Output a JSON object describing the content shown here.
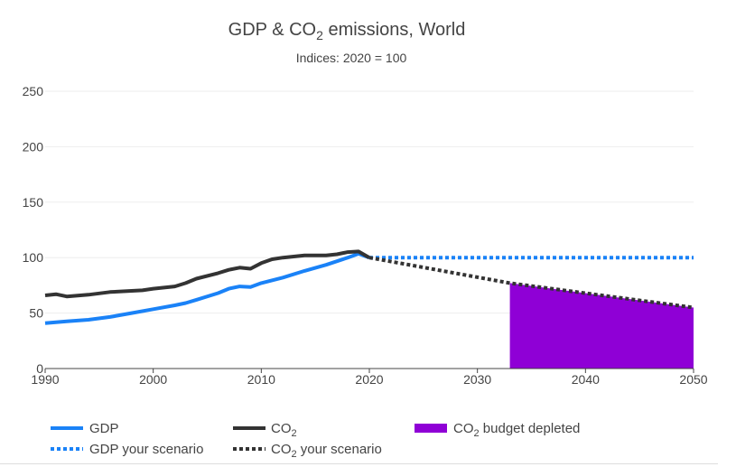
{
  "chart_data": {
    "type": "line",
    "title": "GDP & CO₂ emissions, World",
    "subtitle": "Indices: 2020 = 100",
    "xlabel": "",
    "ylabel": "",
    "xlim": [
      1990,
      2050
    ],
    "ylim": [
      0,
      250
    ],
    "x_ticks": [
      1990,
      2000,
      2010,
      2020,
      2030,
      2040,
      2050
    ],
    "y_ticks": [
      0,
      50,
      100,
      150,
      200,
      250
    ],
    "grid": true,
    "legend_position": "bottom",
    "series": [
      {
        "name": "GDP",
        "color": "#1a82f7",
        "style": "solid",
        "points": [
          [
            1990,
            41
          ],
          [
            1992,
            42.5
          ],
          [
            1994,
            44
          ],
          [
            1996,
            46.5
          ],
          [
            1998,
            50
          ],
          [
            2000,
            53.5
          ],
          [
            2002,
            57
          ],
          [
            2003,
            59
          ],
          [
            2004,
            62
          ],
          [
            2006,
            68
          ],
          [
            2007,
            72
          ],
          [
            2008,
            74
          ],
          [
            2009,
            73.5
          ],
          [
            2010,
            77
          ],
          [
            2012,
            82
          ],
          [
            2014,
            88
          ],
          [
            2016,
            93.5
          ],
          [
            2018,
            100
          ],
          [
            2019,
            103.5
          ],
          [
            2020,
            100
          ]
        ]
      },
      {
        "name": "CO₂",
        "color": "#333333",
        "style": "solid",
        "points": [
          [
            1990,
            66
          ],
          [
            1991,
            67
          ],
          [
            1992,
            65
          ],
          [
            1994,
            66.5
          ],
          [
            1996,
            69
          ],
          [
            1998,
            70
          ],
          [
            1999,
            70.5
          ],
          [
            2000,
            72
          ],
          [
            2002,
            74
          ],
          [
            2003,
            77
          ],
          [
            2004,
            81
          ],
          [
            2006,
            86
          ],
          [
            2007,
            89
          ],
          [
            2008,
            91
          ],
          [
            2009,
            90
          ],
          [
            2010,
            95
          ],
          [
            2011,
            98.5
          ],
          [
            2012,
            100
          ],
          [
            2014,
            102
          ],
          [
            2016,
            102
          ],
          [
            2017,
            103
          ],
          [
            2018,
            105
          ],
          [
            2019,
            105.5
          ],
          [
            2020,
            100
          ]
        ]
      },
      {
        "name": "GDP your scenario",
        "color": "#1a82f7",
        "style": "dotted",
        "points": [
          [
            2020,
            100
          ],
          [
            2050,
            100
          ]
        ]
      },
      {
        "name": "CO₂ your scenario",
        "color": "#333333",
        "style": "dotted",
        "points": [
          [
            2020,
            100
          ],
          [
            2033,
            77
          ],
          [
            2050,
            55
          ]
        ]
      },
      {
        "name": "CO₂ budget depleted",
        "color": "#8f00d6",
        "style": "area",
        "points": [
          [
            2033,
            77
          ],
          [
            2050,
            55
          ]
        ]
      }
    ]
  },
  "legend": {
    "gdp": "GDP",
    "co2_prefix": "CO",
    "co2_sub": "2",
    "budget_prefix": "CO",
    "budget_sub": "2",
    "budget_suffix": " budget depleted",
    "gdp_scenario": "GDP your scenario",
    "co2_scen_prefix": "CO",
    "co2_scen_sub": "2",
    "co2_scen_suffix": " your scenario"
  },
  "header": {
    "title_prefix": "GDP & CO",
    "title_sub": "2",
    "title_suffix": " emissions, World",
    "subtitle": "Indices: 2020 = 100"
  },
  "colors": {
    "gdp": "#1a82f7",
    "co2": "#333333",
    "budget": "#8f00d6",
    "grid": "#eeeeee",
    "axis": "#444444"
  }
}
